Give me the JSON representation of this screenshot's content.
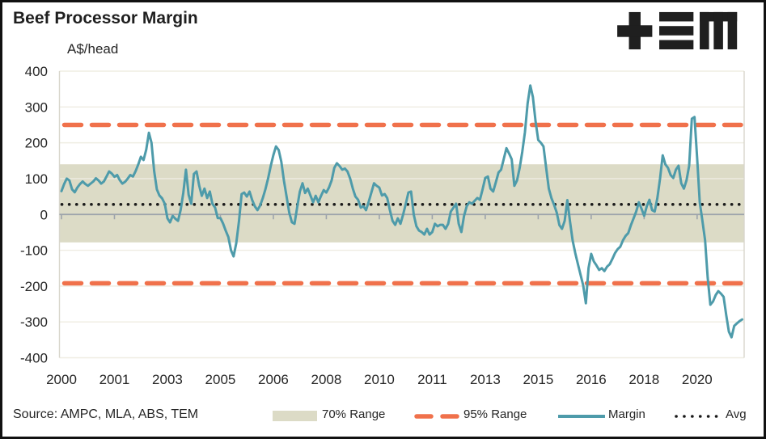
{
  "title": "Beef Processor Margin",
  "units_label": "A$/head",
  "source": "Source: AMPC, MLA, ABS, TEM",
  "logo_name": "TEM",
  "colors": {
    "margin_line": "#4E9BAA",
    "range95_dash": "#F0714B",
    "range70_band": "#DCDBC6",
    "avg_dotted": "#1a1a1a",
    "gridline": "#EFEDE2",
    "zero_axis": "#9DA3AB",
    "text": "#262626",
    "logo": "#1f1f1f",
    "frame_border": "#111111"
  },
  "legend": {
    "items": [
      {
        "label": "70% Range",
        "type": "band"
      },
      {
        "label": "95% Range",
        "type": "dashed"
      },
      {
        "label": "Margin",
        "type": "line"
      },
      {
        "label": "Avg",
        "type": "dotted"
      }
    ],
    "position": "bottom"
  },
  "chart_data": {
    "type": "line",
    "title": "Beef Processor Margin",
    "ylabel": "A$/head",
    "xlabel": "",
    "ylim": [
      -400,
      400
    ],
    "grid": "horizontal",
    "legend_position": "bottom",
    "y_ticks": [
      400,
      300,
      200,
      100,
      0,
      -100,
      -200,
      -300,
      -400
    ],
    "x_tick_labels": [
      "2000",
      "2001",
      "2003",
      "2005",
      "2006",
      "2008",
      "2010",
      "2011",
      "2013",
      "2015",
      "2016",
      "2018",
      "2020"
    ],
    "x_tick_interval_months": 20,
    "frequency": "monthly",
    "start_month": "2000-01",
    "end_month": "2021-06",
    "avg": 28,
    "range70": [
      -78,
      140
    ],
    "range95": [
      -192,
      250
    ],
    "series": [
      {
        "name": "Margin",
        "values": [
          65,
          85,
          100,
          95,
          70,
          62,
          75,
          85,
          92,
          85,
          80,
          86,
          92,
          101,
          95,
          86,
          92,
          106,
          120,
          114,
          105,
          110,
          96,
          86,
          91,
          100,
          110,
          106,
          121,
          140,
          161,
          152,
          181,
          228,
          200,
          121,
          70,
          53,
          45,
          30,
          -11,
          -22,
          -4,
          -12,
          -18,
          12,
          60,
          125,
          55,
          30,
          113,
          120,
          80,
          52,
          72,
          46,
          64,
          30,
          19,
          -10,
          -10,
          -25,
          -45,
          -63,
          -100,
          -117,
          -80,
          -20,
          57,
          61,
          50,
          64,
          40,
          23,
          12,
          25,
          45,
          70,
          100,
          135,
          165,
          190,
          180,
          147,
          95,
          50,
          5,
          -22,
          -26,
          20,
          64,
          87,
          60,
          72,
          53,
          34,
          52,
          34,
          52,
          68,
          61,
          75,
          95,
          130,
          143,
          135,
          125,
          128,
          120,
          100,
          72,
          50,
          41,
          19,
          23,
          12,
          35,
          61,
          87,
          80,
          75,
          53,
          57,
          46,
          12,
          -18,
          -29,
          -11,
          -26,
          0,
          30,
          61,
          64,
          0,
          -33,
          -45,
          -49,
          -56,
          -40,
          -56,
          -49,
          -26,
          -33,
          -29,
          -29,
          -40,
          -26,
          8,
          19,
          30,
          -26,
          -49,
          -4,
          23,
          34,
          30,
          38,
          46,
          41,
          70,
          102,
          106,
          72,
          64,
          90,
          117,
          125,
          155,
          185,
          170,
          154,
          80,
          95,
          130,
          175,
          230,
          310,
          360,
          328,
          260,
          208,
          200,
          190,
          130,
          72,
          46,
          27,
          5,
          -30,
          -40,
          -18,
          40,
          -20,
          -72,
          -108,
          -139,
          -169,
          -198,
          -248,
          -150,
          -110,
          -131,
          -142,
          -155,
          -150,
          -158,
          -146,
          -139,
          -124,
          -108,
          -97,
          -90,
          -72,
          -60,
          -52,
          -30,
          -11,
          8,
          34,
          16,
          -4,
          23,
          41,
          12,
          8,
          46,
          100,
          165,
          140,
          130,
          110,
          102,
          125,
          136,
          87,
          72,
          95,
          136,
          267,
          272,
          160,
          34,
          -18,
          -72,
          -176,
          -252,
          -243,
          -225,
          -214,
          -221,
          -230,
          -282,
          -327,
          -343,
          -311,
          -304,
          -298,
          -293
        ]
      }
    ]
  }
}
